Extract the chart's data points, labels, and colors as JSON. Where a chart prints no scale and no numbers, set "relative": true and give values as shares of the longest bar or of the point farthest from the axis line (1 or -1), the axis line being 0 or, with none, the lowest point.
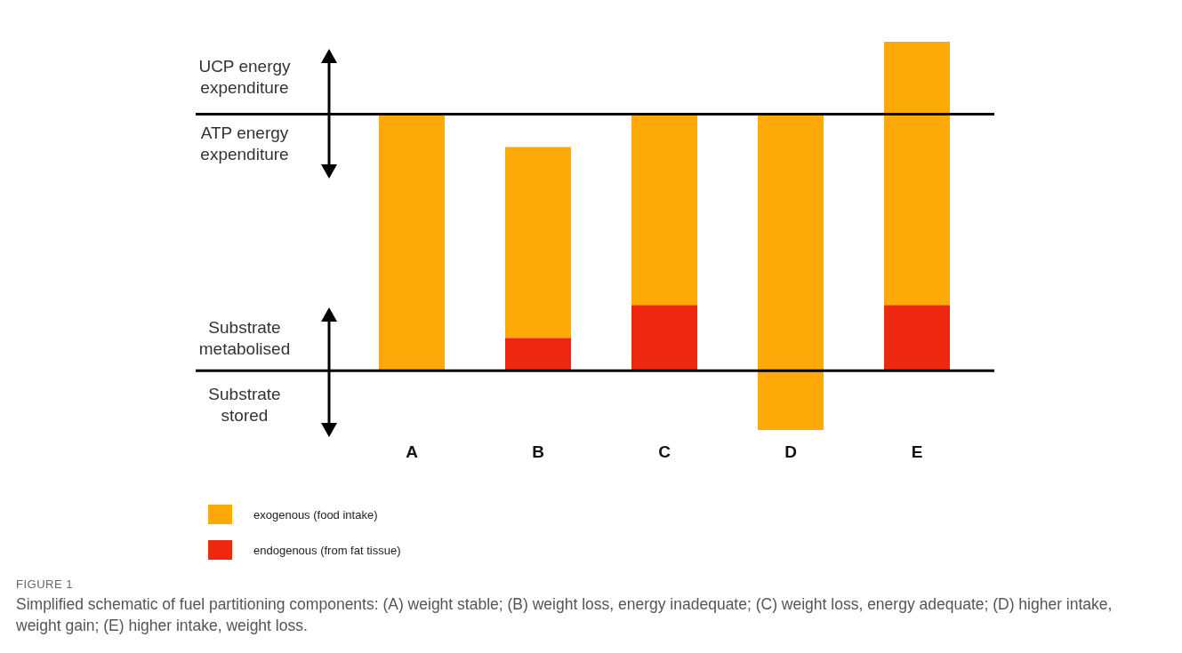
{
  "chart_data": {
    "type": "bar",
    "relative": true,
    "stacked": true,
    "categories": [
      "A",
      "B",
      "C",
      "D",
      "E"
    ],
    "series": [
      {
        "name": "endogenous (from fat tissue)",
        "color": "#ee2711",
        "values": [
          null,
          0.1,
          0.2,
          null,
          0.2
        ]
      },
      {
        "name": "exogenous (food intake)",
        "color": "#fdaa08",
        "values": [
          0.78,
          0.58,
          0.58,
          0.78,
          0.8
        ]
      },
      {
        "color": "#fdaa08",
        "values": [
          null,
          null,
          null,
          -0.18,
          null
        ]
      }
    ],
    "ref_lines": [
      {
        "axis": "y",
        "value": 0
      },
      {
        "axis": "y",
        "value": 0.78
      }
    ],
    "legend": "bottom left",
    "annotations": [
      "UCP energy expenditure",
      "ATP energy expenditure",
      "Substrate metabolised",
      "Substrate stored",
      "FIGURE 1",
      "Simplified schematic of fuel partitioning components: (A) weight stable; (B) weight loss, energy inadequate; (C) weight loss, energy adequate; (D) higher intake, weight gain; (E) higher intake, weight loss."
    ]
  }
}
